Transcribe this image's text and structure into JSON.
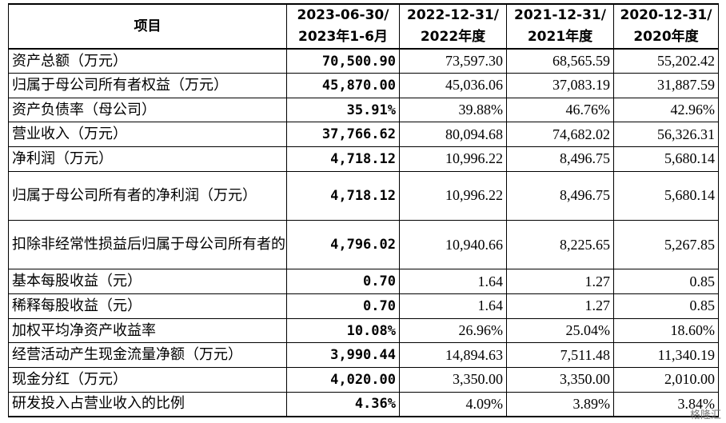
{
  "table": {
    "header": {
      "item": "项目",
      "cols": [
        [
          "2023-06-30/",
          "2023年1-6月"
        ],
        [
          "2022-12-31/",
          "2022年度"
        ],
        [
          "2021-12-31/",
          "2021年度"
        ],
        [
          "2020-12-31/",
          "2020年度"
        ]
      ]
    },
    "rows": [
      {
        "label": "资产总额（万元）",
        "values": [
          "70,500.90",
          "73,597.30",
          "68,565.59",
          "55,202.42"
        ]
      },
      {
        "label": "归属于母公司所有者权益（万元）",
        "values": [
          "45,870.00",
          "45,036.06",
          "37,083.19",
          "31,887.59"
        ]
      },
      {
        "label": "资产负债率（母公司）",
        "values": [
          "35.91%",
          "39.88%",
          "46.76%",
          "42.96%"
        ]
      },
      {
        "label": "营业收入（万元）",
        "values": [
          "37,766.62",
          "80,094.68",
          "74,682.02",
          "56,326.31"
        ]
      },
      {
        "label": "净利润（万元）",
        "values": [
          "4,718.12",
          "10,996.22",
          "8,496.75",
          "5,680.14"
        ]
      },
      {
        "label": "归属于母公司所有者的净利润（万元）",
        "values": [
          "4,718.12",
          "10,996.22",
          "8,496.75",
          "5,680.14"
        ]
      },
      {
        "label": "扣除非经常性损益后归属于母公司所有者的净利润（万元）",
        "values": [
          "4,796.02",
          "10,940.66",
          "8,225.65",
          "5,267.85"
        ]
      },
      {
        "label": "基本每股收益（元）",
        "values": [
          "0.70",
          "1.64",
          "1.27",
          "0.85"
        ]
      },
      {
        "label": "稀释每股收益（元）",
        "values": [
          "0.70",
          "1.64",
          "1.27",
          "0.85"
        ]
      },
      {
        "label": "加权平均净资产收益率",
        "values": [
          "10.08%",
          "26.96%",
          "25.04%",
          "18.60%"
        ]
      },
      {
        "label": "经营活动产生现金流量净额（万元）",
        "values": [
          "3,990.44",
          "14,894.63",
          "7,511.48",
          "11,340.19"
        ]
      },
      {
        "label": "现金分红（万元）",
        "values": [
          "4,020.00",
          "3,350.00",
          "3,350.00",
          "2,010.00"
        ]
      },
      {
        "label": "研发投入占营业收入的比例",
        "values": [
          "4.36%",
          "4.09%",
          "3.89%",
          "3.84%"
        ]
      }
    ]
  },
  "watermark": "格隆汇"
}
